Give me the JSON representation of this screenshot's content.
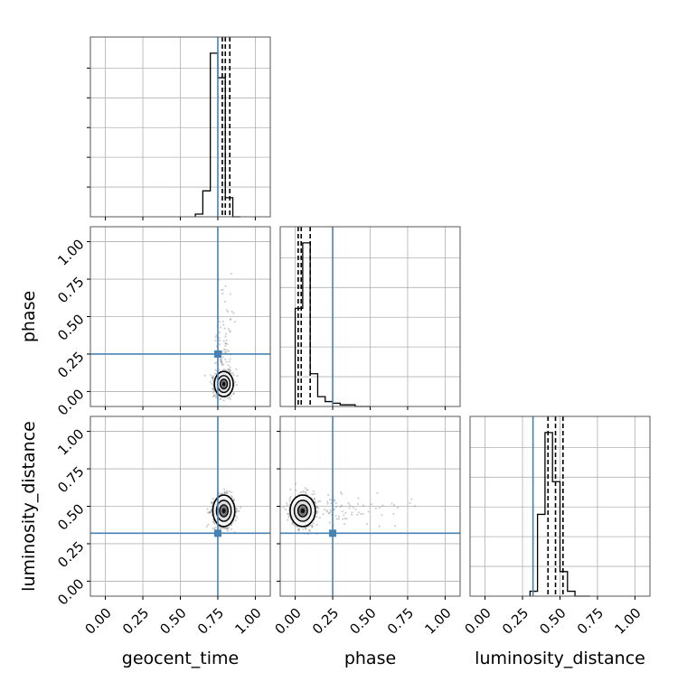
{
  "chart_data": {
    "type": "corner",
    "parameters": [
      "geocent_time",
      "phase",
      "luminosity_distance"
    ],
    "truths": {
      "geocent_time": 0.75,
      "phase": 0.25,
      "luminosity_distance": 0.32
    },
    "tick_labels": [
      "0.00",
      "0.25",
      "0.50",
      "0.75",
      "1.00"
    ],
    "axis_range": [
      -0.1,
      1.1
    ],
    "grid": true,
    "colors": {
      "truth": "#4682b4",
      "hist": "#000000",
      "points": "#555555"
    },
    "marginals": [
      {
        "parameter": "geocent_time",
        "bin_edges": [
          0.6,
          0.65,
          0.7,
          0.75,
          0.8,
          0.85,
          0.9
        ],
        "counts": [
          2,
          19,
          120,
          102,
          14,
          0
        ],
        "quantiles": [
          0.78,
          0.8,
          0.83
        ]
      },
      {
        "parameter": "phase",
        "bin_edges": [
          0.0,
          0.05,
          0.1,
          0.15,
          0.2,
          0.25,
          0.3,
          0.35,
          0.4,
          0.45,
          0.5
        ],
        "counts": [
          60,
          100,
          20,
          6,
          3,
          2,
          1,
          1,
          0,
          0
        ],
        "quantiles": [
          0.02,
          0.04,
          0.1
        ]
      },
      {
        "parameter": "luminosity_distance",
        "bin_edges": [
          0.3,
          0.35,
          0.4,
          0.45,
          0.5,
          0.55,
          0.6,
          0.65,
          0.7
        ],
        "counts": [
          3,
          50,
          100,
          70,
          15,
          3,
          0,
          0
        ],
        "quantiles": [
          0.42,
          0.47,
          0.52
        ]
      }
    ],
    "joint": [
      {
        "x": "geocent_time",
        "y": "phase",
        "center": [
          0.79,
          0.05
        ],
        "spread": [
          0.03,
          0.04
        ],
        "tail": "y"
      },
      {
        "x": "geocent_time",
        "y": "luminosity_distance",
        "center": [
          0.79,
          0.47
        ],
        "spread": [
          0.035,
          0.05
        ],
        "tail": "none"
      },
      {
        "x": "phase",
        "y": "luminosity_distance",
        "center": [
          0.05,
          0.47
        ],
        "spread": [
          0.04,
          0.05
        ],
        "tail": "x"
      }
    ]
  }
}
